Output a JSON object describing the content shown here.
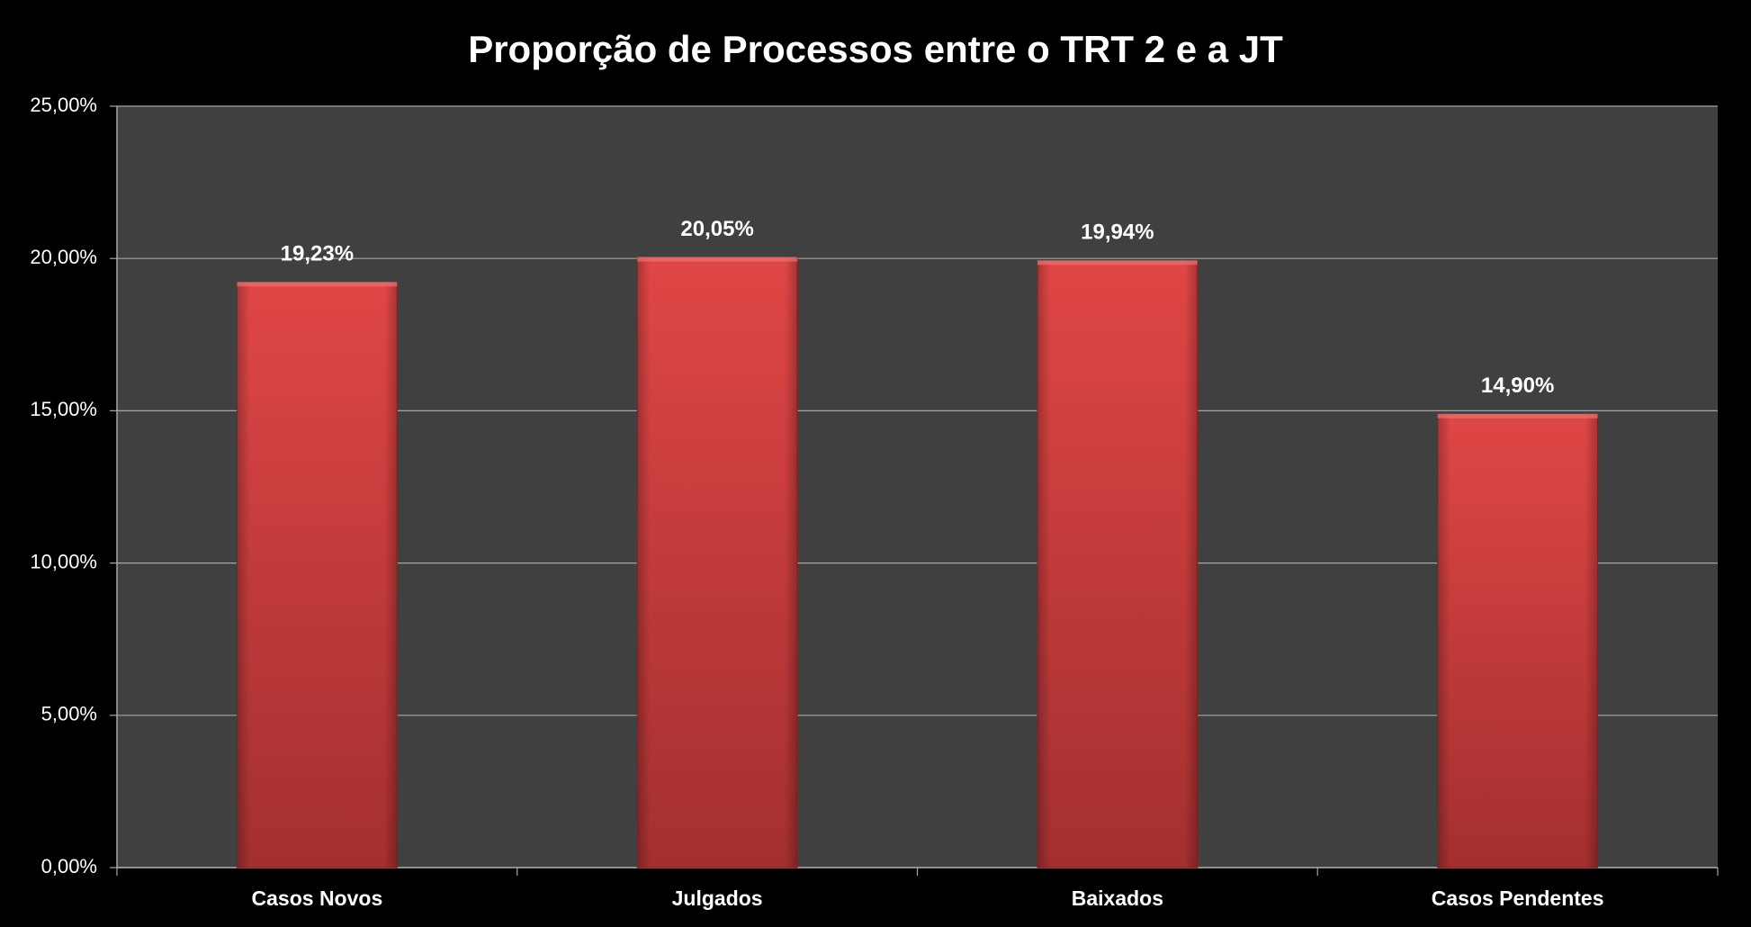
{
  "chart_data": {
    "type": "bar",
    "title": "Proporção de Processos entre o TRT 2 e a JT",
    "categories": [
      "Casos Novos",
      "Julgados",
      "Baixados",
      "Casos Pendentes"
    ],
    "values": [
      19.23,
      20.05,
      19.94,
      14.9
    ],
    "value_labels": [
      "19,23%",
      "20,05%",
      "19,94%",
      "14,90%"
    ],
    "color": "#d94141",
    "ylim": [
      0,
      25
    ],
    "yticks": [
      {
        "value": 0,
        "label": "0,00%"
      },
      {
        "value": 5,
        "label": "5,00%"
      },
      {
        "value": 10,
        "label": "10,00%"
      },
      {
        "value": 15,
        "label": "15,00%"
      },
      {
        "value": 20,
        "label": "20,00%"
      },
      {
        "value": 25,
        "label": "25,00%"
      }
    ],
    "grid": true
  }
}
